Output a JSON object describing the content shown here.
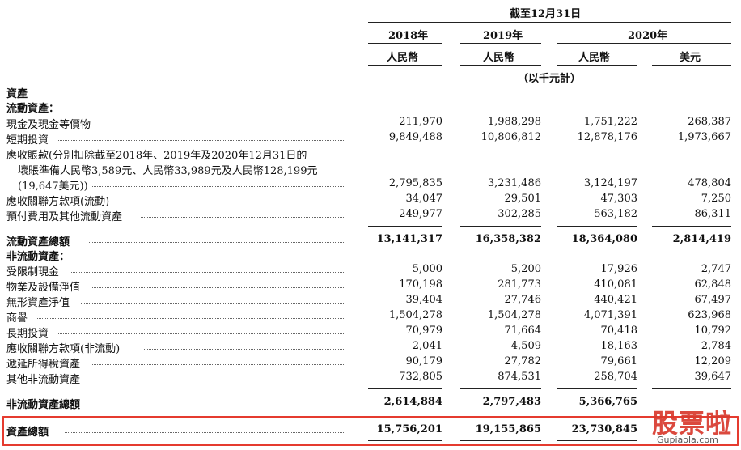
{
  "header": {
    "period": "截至12月31日",
    "years": [
      "2018年",
      "2019年",
      "2020年"
    ],
    "currencies": [
      "人民幣",
      "人民幣",
      "人民幣",
      "美元"
    ],
    "unit": "（以千元計）"
  },
  "section_assets": "資產",
  "current_assets_heading": "流動資產：",
  "current_rows": [
    {
      "label": "現金及現金等價物",
      "values": [
        "211,970",
        "1,988,298",
        "1,751,222",
        "268,387"
      ]
    },
    {
      "label": "短期投資",
      "values": [
        "9,849,488",
        "10,806,812",
        "12,878,176",
        "1,973,667"
      ]
    }
  ],
  "receivables": {
    "line1": "應收賬款(分別扣除截至2018年、2019年及2020年12月31日的",
    "line2": "壞賬準備人民幣3,589元、人民幣33,989元及人民幣128,199元",
    "line3": "(19,647美元))",
    "values": [
      "2,795,835",
      "3,231,486",
      "3,124,197",
      "478,804"
    ]
  },
  "current_rows_2": [
    {
      "label": "應收關聯方款項(流動)",
      "values": [
        "34,047",
        "29,501",
        "47,303",
        "7,250"
      ]
    },
    {
      "label": "預付費用及其他流動資產",
      "values": [
        "249,977",
        "302,285",
        "563,182",
        "86,311"
      ]
    }
  ],
  "total_current": {
    "label": "流動資產總額",
    "values": [
      "13,141,317",
      "16,358,382",
      "18,364,080",
      "2,814,419"
    ]
  },
  "noncurrent_heading": "非流動資產：",
  "noncurrent_rows": [
    {
      "label": "受限制現金",
      "values": [
        "5,000",
        "5,200",
        "17,926",
        "2,747"
      ]
    },
    {
      "label": "物業及設備淨值",
      "values": [
        "170,198",
        "281,773",
        "410,081",
        "62,848"
      ]
    },
    {
      "label": "無形資產淨值",
      "values": [
        "39,404",
        "27,746",
        "440,421",
        "67,497"
      ]
    },
    {
      "label": "商譽",
      "values": [
        "1,504,278",
        "1,504,278",
        "4,071,391",
        "623,968"
      ]
    },
    {
      "label": "長期投資",
      "values": [
        "70,979",
        "71,664",
        "70,418",
        "10,792"
      ]
    },
    {
      "label": "應收關聯方款項(非流動)",
      "values": [
        "2,041",
        "4,509",
        "18,163",
        "2,784"
      ]
    },
    {
      "label": "遞延所得稅資產",
      "values": [
        "90,179",
        "27,782",
        "79,661",
        "12,209"
      ]
    },
    {
      "label": "其他非流動資產",
      "values": [
        "732,805",
        "874,531",
        "258,704",
        "39,647"
      ]
    }
  ],
  "total_noncurrent": {
    "label": "非流動資產總額",
    "values": [
      "2,614,884",
      "2,797,483",
      "5,366,765",
      ""
    ]
  },
  "total_assets": {
    "label": "資產總額",
    "values": [
      "15,756,201",
      "19,155,865",
      "23,730,845",
      ""
    ]
  },
  "watermark": {
    "text": "股票啦",
    "url": "Gupiaola.com"
  },
  "colors": {
    "highlight": "#e53b2f",
    "watermark": "#d83a2e"
  }
}
